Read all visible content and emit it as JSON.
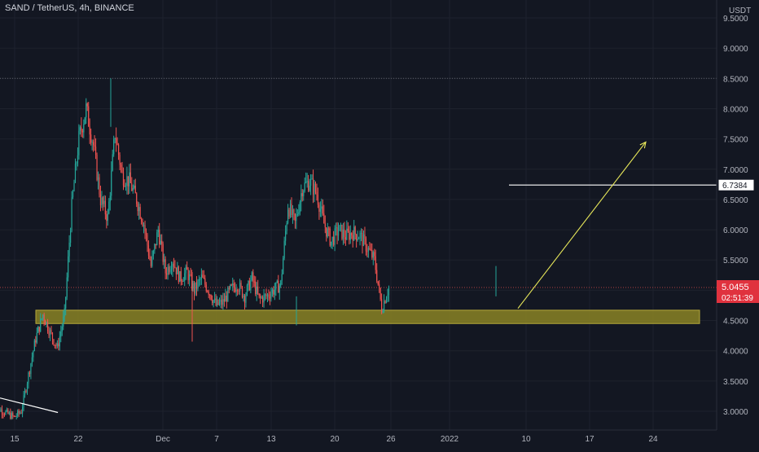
{
  "header": {
    "title": "SAND / TetherUS, 4h, BINANCE",
    "unit": "USDT"
  },
  "colors": {
    "background": "#131722",
    "grid": "#1e222d",
    "up": "#26a69a",
    "down": "#ef5350",
    "zone": "#8a8224",
    "arrow": "#e8e85a",
    "level_line": "#ffffff",
    "current_price_badge": "#e0323e"
  },
  "chart_data": {
    "type": "candlestick",
    "title": "SAND / TetherUS, 4h, BINANCE",
    "ylabel": "USDT",
    "ylim": [
      2.8,
      9.6
    ],
    "grid": true,
    "y_ticks": [
      "3.0000",
      "3.5000",
      "4.0000",
      "4.5000",
      "5.0000",
      "5.5000",
      "6.0000",
      "6.5000",
      "7.0000",
      "7.5000",
      "8.0000",
      "8.5000",
      "9.0000",
      "9.5000"
    ],
    "x_ticks": [
      "15",
      "22",
      "Dec",
      "7",
      "13",
      "20",
      "26",
      "2022",
      "10",
      "17",
      "24"
    ],
    "dotted_level": 8.5,
    "support_zone": {
      "low": 4.45,
      "high": 4.67
    },
    "horizontal_level": {
      "value": 6.7384,
      "label": "6.7384"
    },
    "current_price": {
      "value": 5.0455,
      "label": "5.0455",
      "countdown": "02:51:39"
    },
    "arrow": {
      "from": {
        "x": "Jan 6",
        "y": 4.7
      },
      "to": {
        "x": "Jan 18",
        "y": 7.45
      }
    },
    "trendline": {
      "from": {
        "x": "Nov 12",
        "y": 3.22
      },
      "to": {
        "x": "Nov 21",
        "y": 2.98
      }
    },
    "price_path": [
      [
        "Nov 12",
        3.1
      ],
      [
        "Nov 15",
        2.9
      ],
      [
        "Nov 16",
        3.0
      ],
      [
        "Nov 17",
        3.6
      ],
      [
        "Nov 18",
        4.2
      ],
      [
        "Nov 19",
        4.6
      ],
      [
        "Nov 20",
        4.3
      ],
      [
        "Nov 21",
        4.05
      ],
      [
        "Nov 22",
        4.6
      ],
      [
        "Nov 23",
        6.4
      ],
      [
        "Nov 24",
        7.5
      ],
      [
        "Nov 25",
        8.0
      ],
      [
        "Nov 26",
        7.4
      ],
      [
        "Nov 27",
        6.5
      ],
      [
        "Nov 28",
        6.2
      ],
      [
        "Nov 29",
        7.6
      ],
      [
        "Nov 30",
        6.9
      ],
      [
        "Dec 1",
        6.8
      ],
      [
        "Dec 2",
        6.5
      ],
      [
        "Dec 3",
        6.1
      ],
      [
        "Dec 4",
        5.4
      ],
      [
        "Dec 5",
        6.0
      ],
      [
        "Dec 6",
        5.3
      ],
      [
        "Dec 7",
        5.5
      ],
      [
        "Dec 8",
        5.2
      ],
      [
        "Dec 9",
        5.3
      ],
      [
        "Dec 10",
        5.0
      ],
      [
        "Dec 11",
        5.2
      ],
      [
        "Dec 12",
        5.0
      ],
      [
        "Dec 13",
        4.75
      ],
      [
        "Dec 14",
        4.8
      ],
      [
        "Dec 15",
        5.0
      ],
      [
        "Dec 16",
        5.1
      ],
      [
        "Dec 17",
        4.9
      ],
      [
        "Dec 18",
        5.2
      ],
      [
        "Dec 19",
        4.85
      ],
      [
        "Dec 20",
        4.9
      ],
      [
        "Dec 21",
        5.0
      ],
      [
        "Dec 22",
        5.1
      ],
      [
        "Dec 23",
        6.4
      ],
      [
        "Dec 24",
        6.1
      ],
      [
        "Dec 25",
        6.7
      ],
      [
        "Dec 26",
        6.8
      ],
      [
        "Dec 27",
        6.6
      ],
      [
        "Dec 28",
        6.1
      ],
      [
        "Dec 29",
        5.8
      ],
      [
        "Dec 30",
        6.0
      ],
      [
        "Dec 31",
        5.9
      ],
      [
        "Jan 1",
        5.95
      ],
      [
        "Jan 2",
        5.9
      ],
      [
        "Jan 3",
        5.7
      ],
      [
        "Jan 4",
        5.5
      ],
      [
        "Jan 5",
        4.7
      ],
      [
        "Jan 6",
        5.05
      ]
    ]
  }
}
